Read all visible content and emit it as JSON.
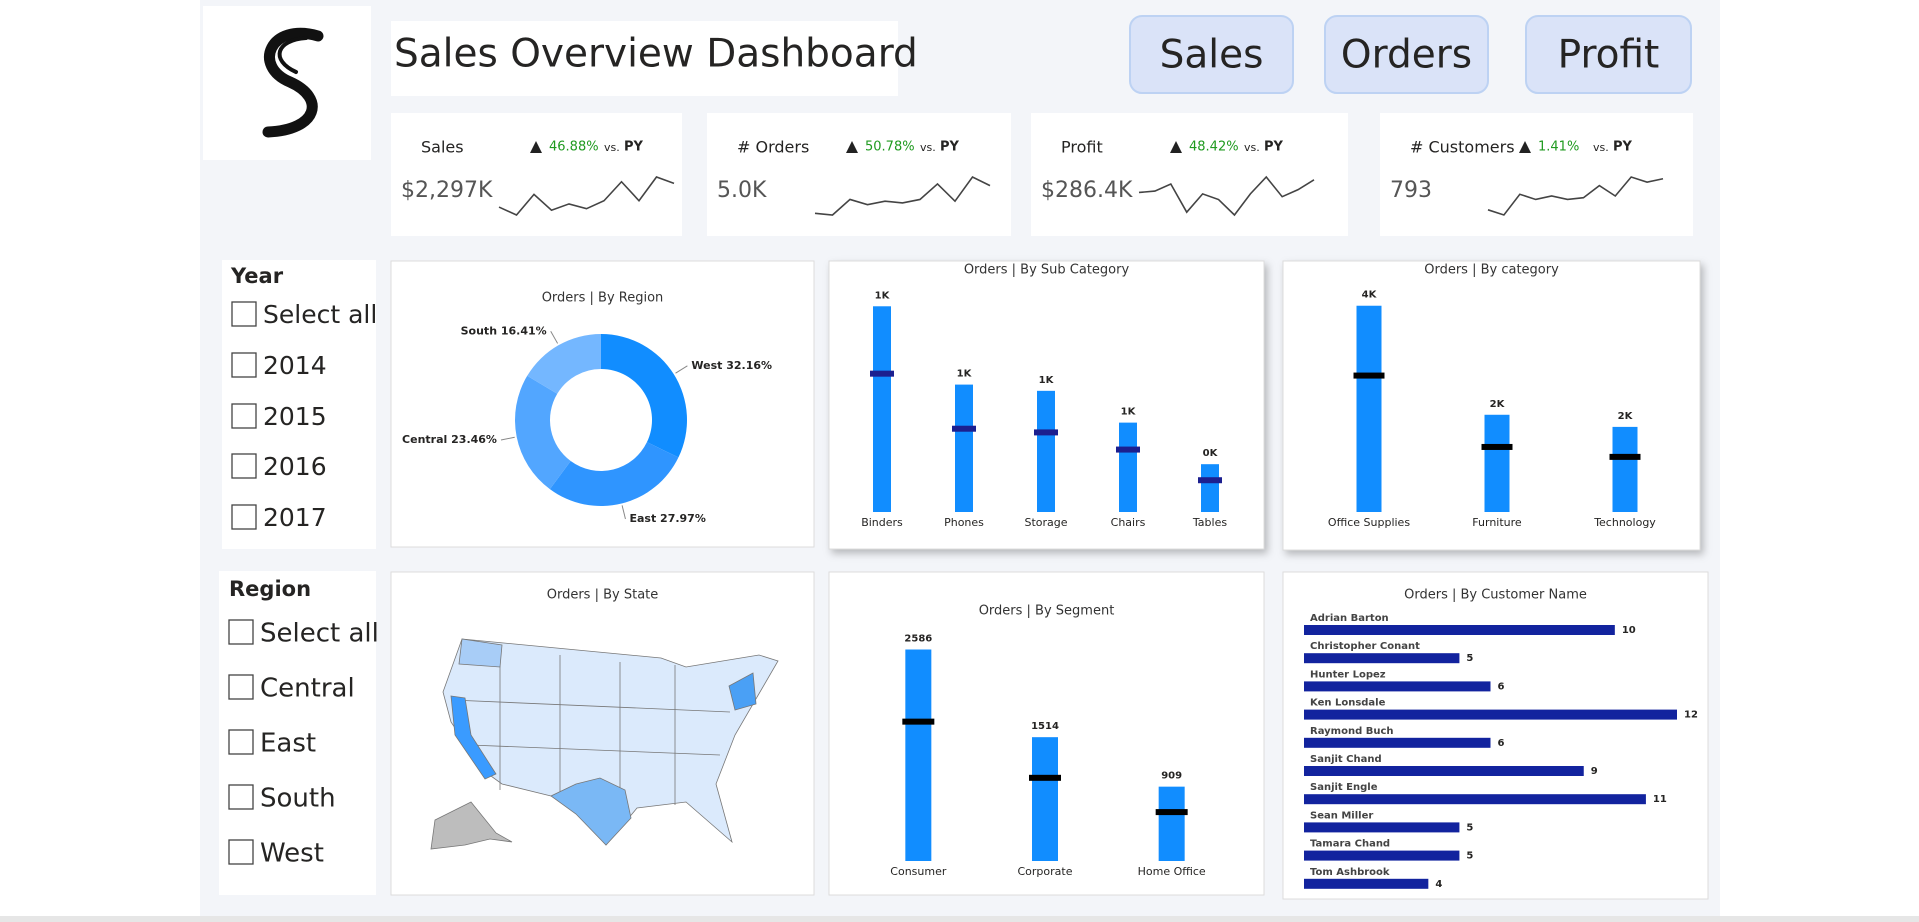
{
  "header": {
    "title": "Sales Overview Dashboard",
    "buttons": [
      "Sales",
      "Orders",
      "Profit"
    ]
  },
  "kpis": [
    {
      "label": "Sales",
      "value": "$2,297K",
      "change": "46.88%",
      "comparison_prefix": "vs.",
      "comparison": "PY",
      "trend": [
        6,
        1,
        14,
        4,
        8,
        5,
        10,
        22,
        10,
        25,
        21
      ]
    },
    {
      "label": "# Orders",
      "value": "5.0K",
      "change": "50.78%",
      "comparison_prefix": "vs.",
      "comparison": "PY",
      "trend": [
        1,
        0,
        9,
        6,
        8,
        7,
        9,
        18,
        8,
        22,
        17
      ]
    },
    {
      "label": "Profit",
      "value": "$286.4K",
      "change": "48.42%",
      "comparison_prefix": "vs.",
      "comparison": "PY",
      "trend": [
        17,
        18,
        23,
        3,
        16,
        12,
        1,
        16,
        28,
        14,
        19,
        26
      ]
    },
    {
      "label": "# Customers",
      "value": "793",
      "change": "1.41%",
      "comparison_prefix": "vs.",
      "comparison": "PY",
      "trend": [
        4,
        1,
        13,
        10,
        12,
        10,
        11,
        18,
        12,
        23,
        20,
        22
      ]
    }
  ],
  "filters": [
    {
      "title": "Year",
      "options": [
        "Select all",
        "2014",
        "2015",
        "2016",
        "2017"
      ]
    },
    {
      "title": "Region",
      "options": [
        "Select all",
        "Central",
        "East",
        "South",
        "West"
      ]
    }
  ],
  "chart_data": [
    {
      "type": "donut",
      "title": "Orders | By Region",
      "categories": [
        "West",
        "East",
        "Central",
        "South"
      ],
      "values": [
        32.16,
        27.97,
        23.46,
        16.41
      ],
      "value_labels": [
        "32.16%",
        "27.97%",
        "23.46%",
        "16.41%"
      ],
      "colors": [
        "#118dff",
        "#2f95ff",
        "#52a6ff",
        "#74b7ff"
      ]
    },
    {
      "type": "bar",
      "title": "Orders | By Sub Category",
      "categories": [
        "Binders",
        "Phones",
        "Storage",
        "Chairs",
        "Tables"
      ],
      "values": [
        1450,
        898,
        854,
        630,
        337
      ],
      "value_labels": [
        "1K",
        "1K",
        "1K",
        "1K",
        "0K"
      ],
      "target_values": [
        975,
        587,
        561,
        440,
        224
      ],
      "color": "#118dff",
      "target_color": "#1c1f8f",
      "ylim": [
        0,
        1600
      ]
    },
    {
      "type": "bar",
      "title": "Orders | By category",
      "categories": [
        "Office Supplies",
        "Furniture",
        "Technology"
      ],
      "values": [
        3742,
        1764,
        1544
      ],
      "value_labels": [
        "4K",
        "2K",
        "2K"
      ],
      "target_values": [
        2475,
        1180,
        1000
      ],
      "color": "#118dff",
      "target_color": "#000000",
      "ylim": [
        0,
        4100
      ]
    },
    {
      "type": "map",
      "title": "Orders | By State"
    },
    {
      "type": "bar",
      "title": "Orders | By Segment",
      "categories": [
        "Consumer",
        "Corporate",
        "Home Office"
      ],
      "values": [
        2586,
        1514,
        909
      ],
      "target_values": [
        1704,
        1017,
        598
      ],
      "color": "#118dff",
      "target_color": "#000000",
      "ylim": [
        0,
        2800
      ]
    },
    {
      "type": "hbar",
      "title": "Orders | By Customer Name",
      "categories": [
        "Adrian Barton",
        "Christopher Conant",
        "Hunter Lopez",
        "Ken Lonsdale",
        "Raymond Buch",
        "Sanjit Chand",
        "Sanjit Engle",
        "Sean Miller",
        "Tamara Chand",
        "Tom Ashbrook"
      ],
      "values": [
        10,
        5,
        6,
        12,
        6,
        9,
        11,
        5,
        5,
        4
      ],
      "color": "#12239e",
      "xlim": [
        0,
        12
      ]
    }
  ]
}
